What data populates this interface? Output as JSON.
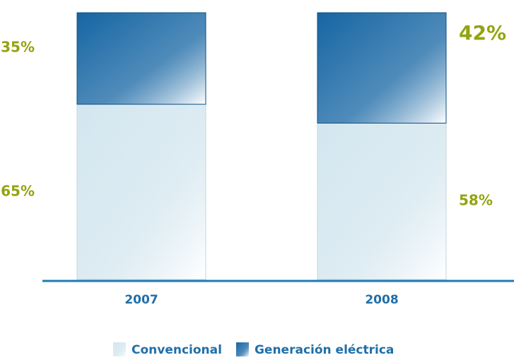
{
  "chart_data": {
    "type": "stacked_bar",
    "categories": [
      "2007",
      "2008"
    ],
    "series": [
      {
        "name": "Convencional",
        "color": "#d3e6ef",
        "values": [
          65,
          58
        ],
        "value_labels": [
          "65%",
          "58%"
        ]
      },
      {
        "name": "Generación eléctrica",
        "color": "#1565a3",
        "values": [
          35,
          42
        ],
        "value_labels": [
          "35%",
          "42%"
        ]
      }
    ]
  }
}
